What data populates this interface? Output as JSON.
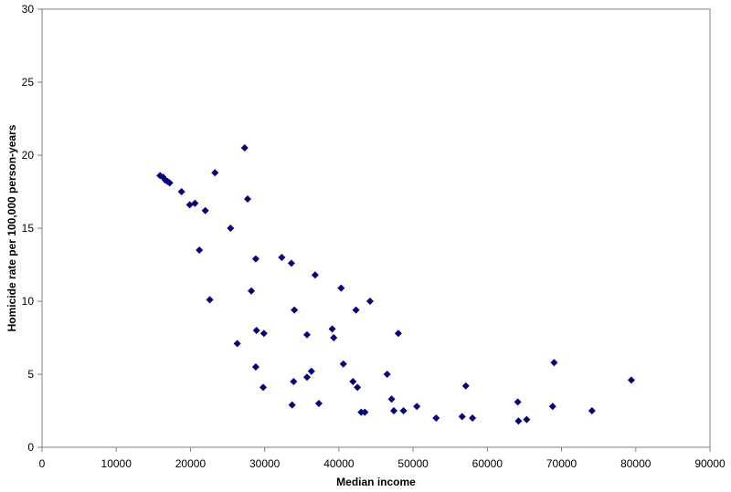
{
  "chart_data": {
    "type": "scatter",
    "title": "",
    "xlabel": "Median income",
    "ylabel": "Homicide rate per 100,000 person-years",
    "xlim": [
      0,
      90000
    ],
    "ylim": [
      0,
      30
    ],
    "xticks": [
      0,
      10000,
      20000,
      30000,
      40000,
      50000,
      60000,
      70000,
      80000,
      90000
    ],
    "yticks": [
      0,
      5,
      10,
      15,
      20,
      25,
      30
    ],
    "grid": false,
    "legend": "none",
    "marker": "diamond",
    "color": "#000080",
    "series": [
      {
        "points": [
          [
            15900,
            18.6
          ],
          [
            16300,
            18.5
          ],
          [
            16600,
            18.3
          ],
          [
            16900,
            18.2
          ],
          [
            17200,
            18.1
          ],
          [
            18800,
            17.5
          ],
          [
            19900,
            16.6
          ],
          [
            20600,
            16.7
          ],
          [
            22000,
            16.2
          ],
          [
            23300,
            18.8
          ],
          [
            21200,
            13.5
          ],
          [
            22600,
            10.1
          ],
          [
            25400,
            15.0
          ],
          [
            27300,
            20.5
          ],
          [
            27700,
            17.0
          ],
          [
            28800,
            12.9
          ],
          [
            28200,
            10.7
          ],
          [
            26300,
            7.1
          ],
          [
            28900,
            8.0
          ],
          [
            29900,
            7.8
          ],
          [
            28800,
            5.5
          ],
          [
            29800,
            4.1
          ],
          [
            32300,
            13.0
          ],
          [
            33600,
            12.6
          ],
          [
            34000,
            9.4
          ],
          [
            35700,
            7.7
          ],
          [
            36800,
            11.8
          ],
          [
            36300,
            5.2
          ],
          [
            35700,
            4.8
          ],
          [
            33900,
            4.5
          ],
          [
            33700,
            2.9
          ],
          [
            37300,
            3.0
          ],
          [
            39100,
            8.1
          ],
          [
            39300,
            7.5
          ],
          [
            40300,
            10.9
          ],
          [
            40600,
            5.7
          ],
          [
            41900,
            4.5
          ],
          [
            42300,
            9.4
          ],
          [
            42500,
            4.1
          ],
          [
            43000,
            2.4
          ],
          [
            43500,
            2.4
          ],
          [
            44200,
            10.0
          ],
          [
            46500,
            5.0
          ],
          [
            47100,
            3.3
          ],
          [
            47400,
            2.5
          ],
          [
            48000,
            7.8
          ],
          [
            48700,
            2.5
          ],
          [
            50500,
            2.8
          ],
          [
            53100,
            2.0
          ],
          [
            56600,
            2.1
          ],
          [
            57100,
            4.2
          ],
          [
            58000,
            2.0
          ],
          [
            64100,
            3.1
          ],
          [
            64200,
            1.8
          ],
          [
            65300,
            1.9
          ],
          [
            68800,
            2.8
          ],
          [
            69000,
            5.8
          ],
          [
            74100,
            2.5
          ],
          [
            79400,
            4.6
          ]
        ]
      }
    ]
  }
}
